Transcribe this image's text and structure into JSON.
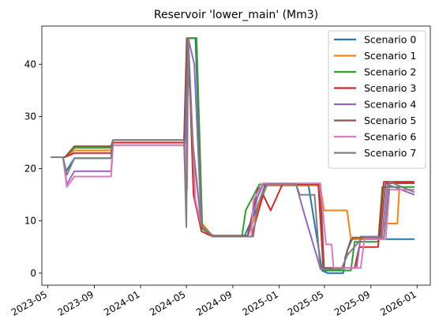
{
  "chart_data": {
    "type": "line",
    "title": "Reservoir 'lower_main' (Mm3)",
    "xlabel": "",
    "ylabel": "",
    "x_type": "date",
    "xlim": [
      "2023-04-15",
      "2026-02-05"
    ],
    "ylim": [
      -2.3,
      47.3
    ],
    "x_ticks": [
      "2023-05",
      "2023-09",
      "2024-01",
      "2024-05",
      "2024-09",
      "2025-01",
      "2025-05",
      "2025-09",
      "2026-01"
    ],
    "y_ticks": [
      0,
      10,
      20,
      30,
      40
    ],
    "grid": false,
    "legend_position": "top-right",
    "series": [
      {
        "name": "Scenario 0",
        "color": "#1f77b4",
        "points": [
          [
            "2023-05-08",
            22.2
          ],
          [
            "2023-06-10",
            22.2
          ],
          [
            "2023-06-18",
            19.5
          ],
          [
            "2023-07-10",
            22.0
          ],
          [
            "2023-10-15",
            22.0
          ],
          [
            "2023-10-20",
            25.0
          ],
          [
            "2024-04-25",
            25.0
          ],
          [
            "2024-05-03",
            45.0
          ],
          [
            "2024-05-25",
            45.0
          ],
          [
            "2024-06-12",
            9.0
          ],
          [
            "2024-07-10",
            7.0
          ],
          [
            "2024-10-01",
            7.0
          ],
          [
            "2024-11-01",
            12.0
          ],
          [
            "2024-11-25",
            16.8
          ],
          [
            "2025-03-20",
            16.8
          ],
          [
            "2025-04-25",
            0.5
          ],
          [
            "2025-05-10",
            0.0
          ],
          [
            "2025-06-20",
            0.0
          ],
          [
            "2025-06-25",
            3.0
          ],
          [
            "2025-07-10",
            6.5
          ],
          [
            "2025-10-01",
            6.5
          ],
          [
            "2025-12-25",
            6.5
          ]
        ]
      },
      {
        "name": "Scenario 1",
        "color": "#ff7f0e",
        "points": [
          [
            "2023-05-08",
            22.2
          ],
          [
            "2023-06-15",
            22.2
          ],
          [
            "2023-07-10",
            23.5
          ],
          [
            "2023-10-15",
            23.5
          ],
          [
            "2023-10-20",
            25.0
          ],
          [
            "2024-04-25",
            25.0
          ],
          [
            "2024-05-05",
            45.0
          ],
          [
            "2024-05-28",
            45.0
          ],
          [
            "2024-06-12",
            9.5
          ],
          [
            "2024-07-10",
            7.0
          ],
          [
            "2024-10-10",
            7.0
          ],
          [
            "2024-11-10",
            13.0
          ],
          [
            "2024-11-30",
            16.8
          ],
          [
            "2025-04-20",
            16.8
          ],
          [
            "2025-04-30",
            12.0
          ],
          [
            "2025-06-30",
            12.0
          ],
          [
            "2025-07-10",
            6.5
          ],
          [
            "2025-09-25",
            6.5
          ],
          [
            "2025-10-05",
            9.5
          ],
          [
            "2025-11-10",
            9.5
          ],
          [
            "2025-11-15",
            16.0
          ],
          [
            "2025-12-25",
            16.0
          ]
        ]
      },
      {
        "name": "Scenario 2",
        "color": "#2ca02c",
        "points": [
          [
            "2023-05-08",
            22.2
          ],
          [
            "2023-06-15",
            22.2
          ],
          [
            "2023-07-10",
            24.0
          ],
          [
            "2023-10-15",
            24.0
          ],
          [
            "2023-10-20",
            25.0
          ],
          [
            "2024-04-25",
            25.0
          ],
          [
            "2024-05-08",
            45.0
          ],
          [
            "2024-05-28",
            45.0
          ],
          [
            "2024-06-12",
            8.5
          ],
          [
            "2024-07-10",
            7.0
          ],
          [
            "2024-09-25",
            7.0
          ],
          [
            "2024-10-05",
            12.0
          ],
          [
            "2024-11-10",
            17.0
          ],
          [
            "2025-04-15",
            17.0
          ],
          [
            "2025-04-30",
            0.5
          ],
          [
            "2025-07-10",
            0.5
          ],
          [
            "2025-07-20",
            6.0
          ],
          [
            "2025-09-20",
            6.0
          ],
          [
            "2025-10-01",
            16.5
          ],
          [
            "2025-12-25",
            16.5
          ]
        ]
      },
      {
        "name": "Scenario 3",
        "color": "#d62728",
        "points": [
          [
            "2023-05-08",
            22.2
          ],
          [
            "2023-06-15",
            22.2
          ],
          [
            "2023-07-10",
            23.0
          ],
          [
            "2023-10-15",
            23.0
          ],
          [
            "2023-10-20",
            25.0
          ],
          [
            "2024-04-25",
            25.0
          ],
          [
            "2024-05-01",
            13.5
          ],
          [
            "2024-05-06",
            45.0
          ],
          [
            "2024-05-20",
            15.0
          ],
          [
            "2024-06-10",
            8.0
          ],
          [
            "2024-07-10",
            7.0
          ],
          [
            "2024-10-20",
            7.0
          ],
          [
            "2024-11-20",
            15.0
          ],
          [
            "2024-12-10",
            12.0
          ],
          [
            "2025-01-10",
            17.0
          ],
          [
            "2025-04-15",
            17.0
          ],
          [
            "2025-04-28",
            1.0
          ],
          [
            "2025-07-20",
            1.0
          ],
          [
            "2025-08-01",
            5.0
          ],
          [
            "2025-09-20",
            5.0
          ],
          [
            "2025-10-05",
            17.5
          ],
          [
            "2025-12-25",
            17.5
          ]
        ]
      },
      {
        "name": "Scenario 4",
        "color": "#9467bd",
        "points": [
          [
            "2023-05-08",
            22.2
          ],
          [
            "2023-06-10",
            22.2
          ],
          [
            "2023-06-20",
            17.0
          ],
          [
            "2023-07-10",
            19.5
          ],
          [
            "2023-10-15",
            19.5
          ],
          [
            "2023-10-20",
            24.5
          ],
          [
            "2024-04-28",
            24.5
          ],
          [
            "2024-05-06",
            45.0
          ],
          [
            "2024-05-22",
            40.0
          ],
          [
            "2024-06-10",
            9.0
          ],
          [
            "2024-07-10",
            7.0
          ],
          [
            "2024-10-10",
            7.0
          ],
          [
            "2024-11-05",
            14.5
          ],
          [
            "2024-11-20",
            17.0
          ],
          [
            "2025-02-15",
            17.0
          ],
          [
            "2025-03-10",
            11.0
          ],
          [
            "2025-04-20",
            1.0
          ],
          [
            "2025-07-25",
            1.0
          ],
          [
            "2025-08-05",
            7.0
          ],
          [
            "2025-09-30",
            7.0
          ],
          [
            "2025-10-15",
            17.0
          ],
          [
            "2025-12-25",
            15.0
          ]
        ]
      },
      {
        "name": "Scenario 5",
        "color": "#8c564b",
        "points": [
          [
            "2023-05-08",
            22.2
          ],
          [
            "2023-06-15",
            22.2
          ],
          [
            "2023-07-10",
            24.3
          ],
          [
            "2023-10-15",
            24.3
          ],
          [
            "2023-10-20",
            25.5
          ],
          [
            "2024-04-25",
            25.5
          ],
          [
            "2024-05-02",
            45.0
          ],
          [
            "2024-05-20",
            23.0
          ],
          [
            "2024-06-10",
            9.0
          ],
          [
            "2024-07-10",
            7.2
          ],
          [
            "2024-10-10",
            7.2
          ],
          [
            "2024-11-05",
            16.0
          ],
          [
            "2024-11-25",
            17.2
          ],
          [
            "2025-04-20",
            17.2
          ],
          [
            "2025-04-30",
            1.0
          ],
          [
            "2025-06-20",
            1.0
          ],
          [
            "2025-07-01",
            4.5
          ],
          [
            "2025-07-15",
            6.8
          ],
          [
            "2025-09-25",
            6.8
          ],
          [
            "2025-10-10",
            17.2
          ],
          [
            "2025-12-25",
            17.2
          ]
        ]
      },
      {
        "name": "Scenario 6",
        "color": "#e377c2",
        "points": [
          [
            "2023-05-08",
            22.2
          ],
          [
            "2023-06-10",
            22.2
          ],
          [
            "2023-06-20",
            16.5
          ],
          [
            "2023-07-10",
            18.5
          ],
          [
            "2023-10-15",
            18.5
          ],
          [
            "2023-10-20",
            24.5
          ],
          [
            "2024-04-28",
            24.5
          ],
          [
            "2024-05-03",
            16.0
          ],
          [
            "2024-05-06",
            45.0
          ],
          [
            "2024-05-25",
            14.0
          ],
          [
            "2024-06-10",
            9.0
          ],
          [
            "2024-07-10",
            7.0
          ],
          [
            "2024-10-20",
            7.0
          ],
          [
            "2024-10-25",
            14.0
          ],
          [
            "2024-11-20",
            17.2
          ],
          [
            "2025-04-20",
            17.2
          ],
          [
            "2025-05-05",
            5.5
          ],
          [
            "2025-05-20",
            5.5
          ],
          [
            "2025-05-25",
            1.0
          ],
          [
            "2025-08-05",
            1.0
          ],
          [
            "2025-08-15",
            6.5
          ],
          [
            "2025-10-10",
            6.5
          ],
          [
            "2025-10-20",
            16.0
          ],
          [
            "2025-12-25",
            16.0
          ]
        ]
      },
      {
        "name": "Scenario 7",
        "color": "#7f7f7f",
        "points": [
          [
            "2023-05-08",
            22.2
          ],
          [
            "2023-06-10",
            22.2
          ],
          [
            "2023-06-20",
            18.8
          ],
          [
            "2023-07-10",
            22.0
          ],
          [
            "2023-10-15",
            22.0
          ],
          [
            "2023-10-20",
            25.5
          ],
          [
            "2024-04-25",
            25.5
          ],
          [
            "2024-05-01",
            8.8
          ],
          [
            "2024-05-06",
            45.0
          ],
          [
            "2024-05-18",
            25.0
          ],
          [
            "2024-06-10",
            9.0
          ],
          [
            "2024-07-10",
            7.0
          ],
          [
            "2024-10-25",
            7.0
          ],
          [
            "2024-11-05",
            13.0
          ],
          [
            "2024-11-30",
            17.0
          ],
          [
            "2025-02-15",
            17.0
          ],
          [
            "2025-02-25",
            15.0
          ],
          [
            "2025-04-05",
            15.0
          ],
          [
            "2025-04-20",
            0.8
          ],
          [
            "2025-06-15",
            0.8
          ],
          [
            "2025-07-01",
            3.5
          ],
          [
            "2025-08-10",
            6.8
          ],
          [
            "2025-10-05",
            6.8
          ],
          [
            "2025-10-20",
            17.5
          ],
          [
            "2025-12-25",
            15.5
          ]
        ]
      }
    ]
  }
}
